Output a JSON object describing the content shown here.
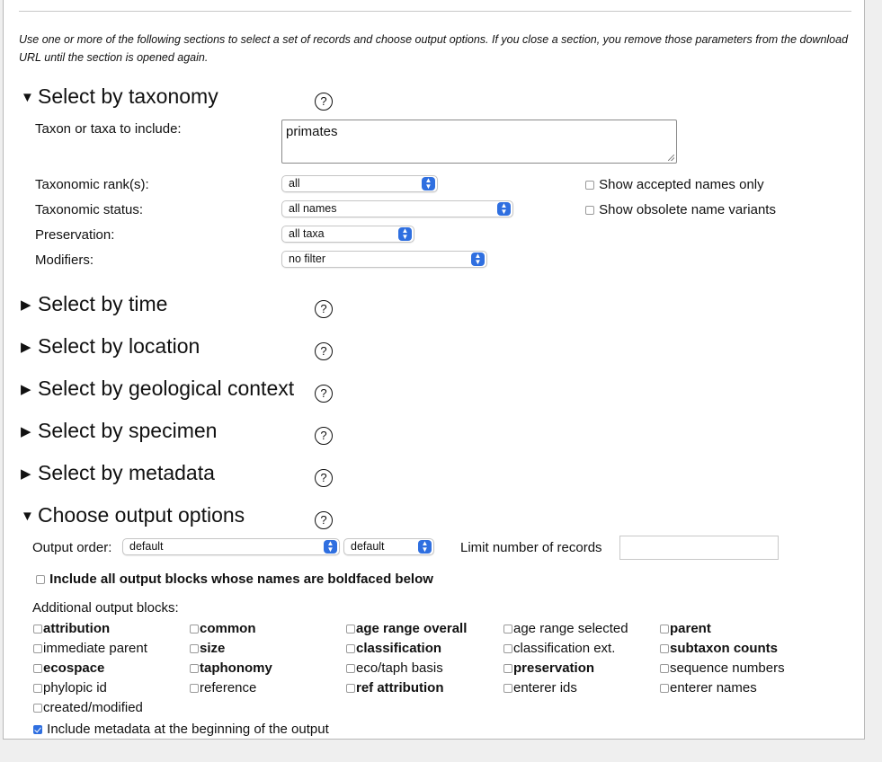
{
  "intro": "Use one or more of the following sections to select a set of records and choose output options. If you close a section, you remove those parameters from the download URL until the section is opened again.",
  "help_glyph": "?",
  "sections": {
    "taxonomy": {
      "title": "Select by taxonomy",
      "expanded": true
    },
    "time": {
      "title": "Select by time",
      "expanded": false
    },
    "location": {
      "title": "Select by location",
      "expanded": false
    },
    "geological": {
      "title": "Select by geological context",
      "expanded": false
    },
    "specimen": {
      "title": "Select by specimen",
      "expanded": false
    },
    "metadata": {
      "title": "Select by metadata",
      "expanded": false
    },
    "output": {
      "title": "Choose output options",
      "expanded": true
    }
  },
  "icons": {
    "expanded": "▼",
    "collapsed": "▶"
  },
  "taxonomy": {
    "taxon_label": "Taxon or taxa to include:",
    "taxon_value": "primates",
    "rank_label": "Taxonomic rank(s):",
    "rank_value": "all",
    "status_label": "Taxonomic status:",
    "status_value": "all names",
    "preservation_label": "Preservation:",
    "preservation_value": "all taxa",
    "modifiers_label": "Modifiers:",
    "modifiers_value": "no filter",
    "accepted_only": {
      "label": "Show accepted names only",
      "checked": false
    },
    "obsolete_variants": {
      "label": "Show obsolete name variants",
      "checked": false
    }
  },
  "output": {
    "order_label": "Output order:",
    "order_value": "default",
    "order_dir_value": "default",
    "limit_label": "Limit number of records",
    "limit_value": "",
    "include_all_label": "Include all output blocks whose names are boldfaced below",
    "additional_label": "Additional output blocks:",
    "blocks": [
      {
        "label": "attribution",
        "bold": true
      },
      {
        "label": "common",
        "bold": true
      },
      {
        "label": "age range overall",
        "bold": true
      },
      {
        "label": "age range selected",
        "bold": false
      },
      {
        "label": "parent",
        "bold": true
      },
      {
        "label": "immediate parent",
        "bold": false
      },
      {
        "label": "size",
        "bold": true
      },
      {
        "label": "classification",
        "bold": true
      },
      {
        "label": "classification ext.",
        "bold": false
      },
      {
        "label": "subtaxon counts",
        "bold": true
      },
      {
        "label": "ecospace",
        "bold": true
      },
      {
        "label": "taphonomy",
        "bold": true
      },
      {
        "label": "eco/taph basis",
        "bold": false
      },
      {
        "label": "preservation",
        "bold": true
      },
      {
        "label": "sequence numbers",
        "bold": false
      },
      {
        "label": "phylopic id",
        "bold": false
      },
      {
        "label": "reference",
        "bold": false
      },
      {
        "label": "ref attribution",
        "bold": true
      },
      {
        "label": "enterer ids",
        "bold": false
      },
      {
        "label": "enterer names",
        "bold": false
      },
      {
        "label": "created/modified",
        "bold": false
      }
    ],
    "metadata_label": "Include metadata at the beginning of the output",
    "metadata_checked": true
  },
  "colors": {
    "accent": "#2f6fe0",
    "background": "#efefef",
    "panel": "#ffffff"
  }
}
